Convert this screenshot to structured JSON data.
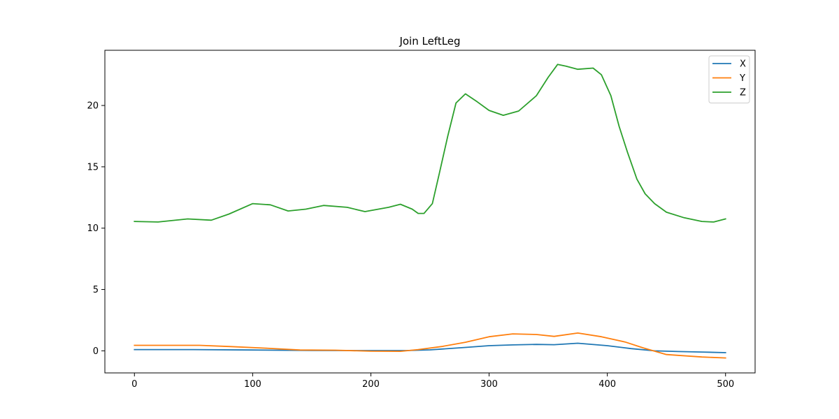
{
  "chart_data": {
    "type": "line",
    "title": "Join LeftLeg",
    "xlabel": "",
    "ylabel": "",
    "xlim": [
      -25,
      525
    ],
    "ylim": [
      -1.8,
      24.5
    ],
    "xticks": [
      0,
      100,
      200,
      300,
      400,
      500
    ],
    "yticks": [
      0,
      5,
      10,
      15,
      20
    ],
    "grid": false,
    "legend_position": "top-right",
    "series": [
      {
        "name": "X",
        "color": "#1f77b4",
        "points": [
          [
            0,
            0.1
          ],
          [
            50,
            0.1
          ],
          [
            100,
            0.07
          ],
          [
            150,
            0.03
          ],
          [
            200,
            0.02
          ],
          [
            230,
            0.02
          ],
          [
            250,
            0.08
          ],
          [
            280,
            0.28
          ],
          [
            300,
            0.42
          ],
          [
            320,
            0.48
          ],
          [
            340,
            0.52
          ],
          [
            355,
            0.5
          ],
          [
            375,
            0.62
          ],
          [
            400,
            0.42
          ],
          [
            420,
            0.18
          ],
          [
            440,
            0.0
          ],
          [
            460,
            -0.06
          ],
          [
            480,
            -0.1
          ],
          [
            500,
            -0.15
          ]
        ]
      },
      {
        "name": "Y",
        "color": "#ff7f0e",
        "points": [
          [
            0,
            0.45
          ],
          [
            55,
            0.45
          ],
          [
            80,
            0.35
          ],
          [
            110,
            0.22
          ],
          [
            140,
            0.07
          ],
          [
            170,
            0.05
          ],
          [
            200,
            -0.03
          ],
          [
            225,
            -0.04
          ],
          [
            240,
            0.1
          ],
          [
            260,
            0.35
          ],
          [
            280,
            0.7
          ],
          [
            300,
            1.15
          ],
          [
            320,
            1.38
          ],
          [
            340,
            1.33
          ],
          [
            355,
            1.18
          ],
          [
            375,
            1.45
          ],
          [
            395,
            1.15
          ],
          [
            415,
            0.72
          ],
          [
            430,
            0.25
          ],
          [
            450,
            -0.3
          ],
          [
            480,
            -0.5
          ],
          [
            500,
            -0.58
          ]
        ]
      },
      {
        "name": "Z",
        "color": "#2ca02c",
        "points": [
          [
            0,
            10.55
          ],
          [
            20,
            10.5
          ],
          [
            45,
            10.75
          ],
          [
            65,
            10.65
          ],
          [
            80,
            11.15
          ],
          [
            100,
            12.0
          ],
          [
            115,
            11.9
          ],
          [
            130,
            11.4
          ],
          [
            145,
            11.55
          ],
          [
            160,
            11.85
          ],
          [
            180,
            11.7
          ],
          [
            195,
            11.35
          ],
          [
            215,
            11.7
          ],
          [
            225,
            11.95
          ],
          [
            235,
            11.55
          ],
          [
            240,
            11.2
          ],
          [
            245,
            11.2
          ],
          [
            252,
            12.0
          ],
          [
            258,
            14.5
          ],
          [
            265,
            17.5
          ],
          [
            272,
            20.2
          ],
          [
            280,
            20.95
          ],
          [
            290,
            20.3
          ],
          [
            300,
            19.6
          ],
          [
            312,
            19.2
          ],
          [
            325,
            19.55
          ],
          [
            340,
            20.8
          ],
          [
            350,
            22.3
          ],
          [
            358,
            23.35
          ],
          [
            365,
            23.2
          ],
          [
            375,
            22.95
          ],
          [
            388,
            23.05
          ],
          [
            395,
            22.5
          ],
          [
            403,
            20.8
          ],
          [
            410,
            18.3
          ],
          [
            417,
            16.2
          ],
          [
            425,
            14.0
          ],
          [
            432,
            12.8
          ],
          [
            440,
            12.0
          ],
          [
            450,
            11.3
          ],
          [
            465,
            10.85
          ],
          [
            480,
            10.55
          ],
          [
            490,
            10.5
          ],
          [
            500,
            10.75
          ]
        ]
      }
    ]
  }
}
